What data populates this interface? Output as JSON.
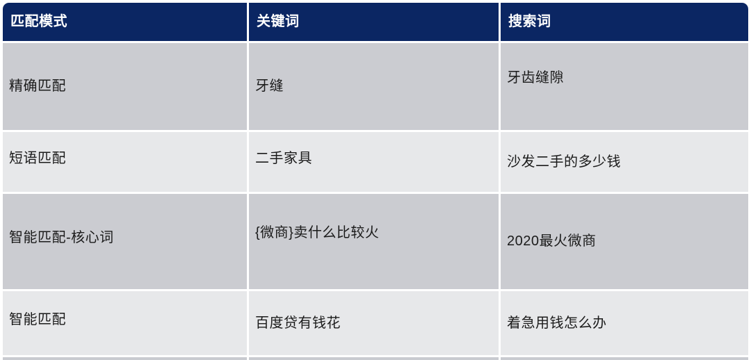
{
  "title": "search-ads-match-mode-table",
  "chart_data": {
    "type": "table",
    "columns": [
      "匹配模式",
      "关键词",
      "搜索词"
    ],
    "rows": [
      [
        "精确匹配",
        "牙缝",
        "牙齿缝隙"
      ],
      [
        "短语匹配",
        "二手家具",
        "沙发二手的多少钱"
      ],
      [
        "智能匹配-核心词",
        "{微商}卖什么比较火",
        "2020最火微商"
      ],
      [
        "智能匹配",
        "百度贷有钱花",
        "着急用钱怎么办"
      ]
    ],
    "layout_hints": {
      "header_position": "top",
      "grid": "white 3px divider lines",
      "alternating_rows": true
    }
  },
  "colors": {
    "header_bg": "#0b2663",
    "header_text": "#ffffff",
    "row_odd_bg": "#cbccd1",
    "row_even_bg": "#e7e8ea",
    "cell_text": "#1b1b1b",
    "divider": "#ffffff",
    "page_bg": "#ffffff"
  }
}
